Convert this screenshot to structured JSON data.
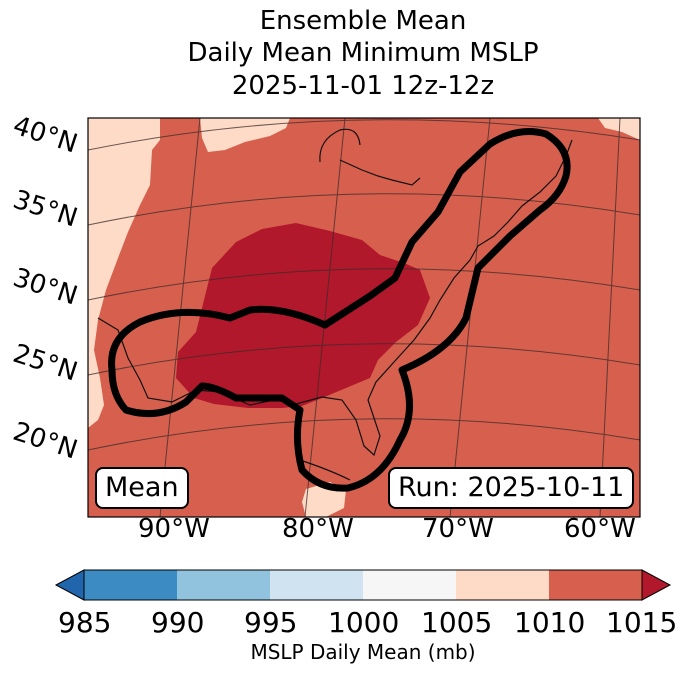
{
  "title": {
    "line1": "Ensemble Mean",
    "line2": "Daily Mean Minimum MSLP",
    "line3": "2025-11-01 12z-12z"
  },
  "map": {
    "lat_labels": [
      "40°N",
      "35°N",
      "30°N",
      "25°N",
      "20°N"
    ],
    "lon_labels": [
      "90°W",
      "80°W",
      "70°W",
      "60°W"
    ],
    "mean_badge": "Mean",
    "run_badge": "Run: 2025-10-11",
    "fill_colors": {
      "c985_990": "#3d8bc3",
      "c990_995": "#91c3df",
      "c995_1000": "#cfe3f0",
      "c1000_1005": "#f6f6f6",
      "c1005_1010": "#fddbc7",
      "c1010_1015": "#d6604d",
      "c1015_plus": "#b2182b"
    }
  },
  "colorbar": {
    "ticks": [
      "985",
      "990",
      "995",
      "1000",
      "1005",
      "1010",
      "1015"
    ],
    "label": "MSLP Daily Mean (mb)"
  }
}
